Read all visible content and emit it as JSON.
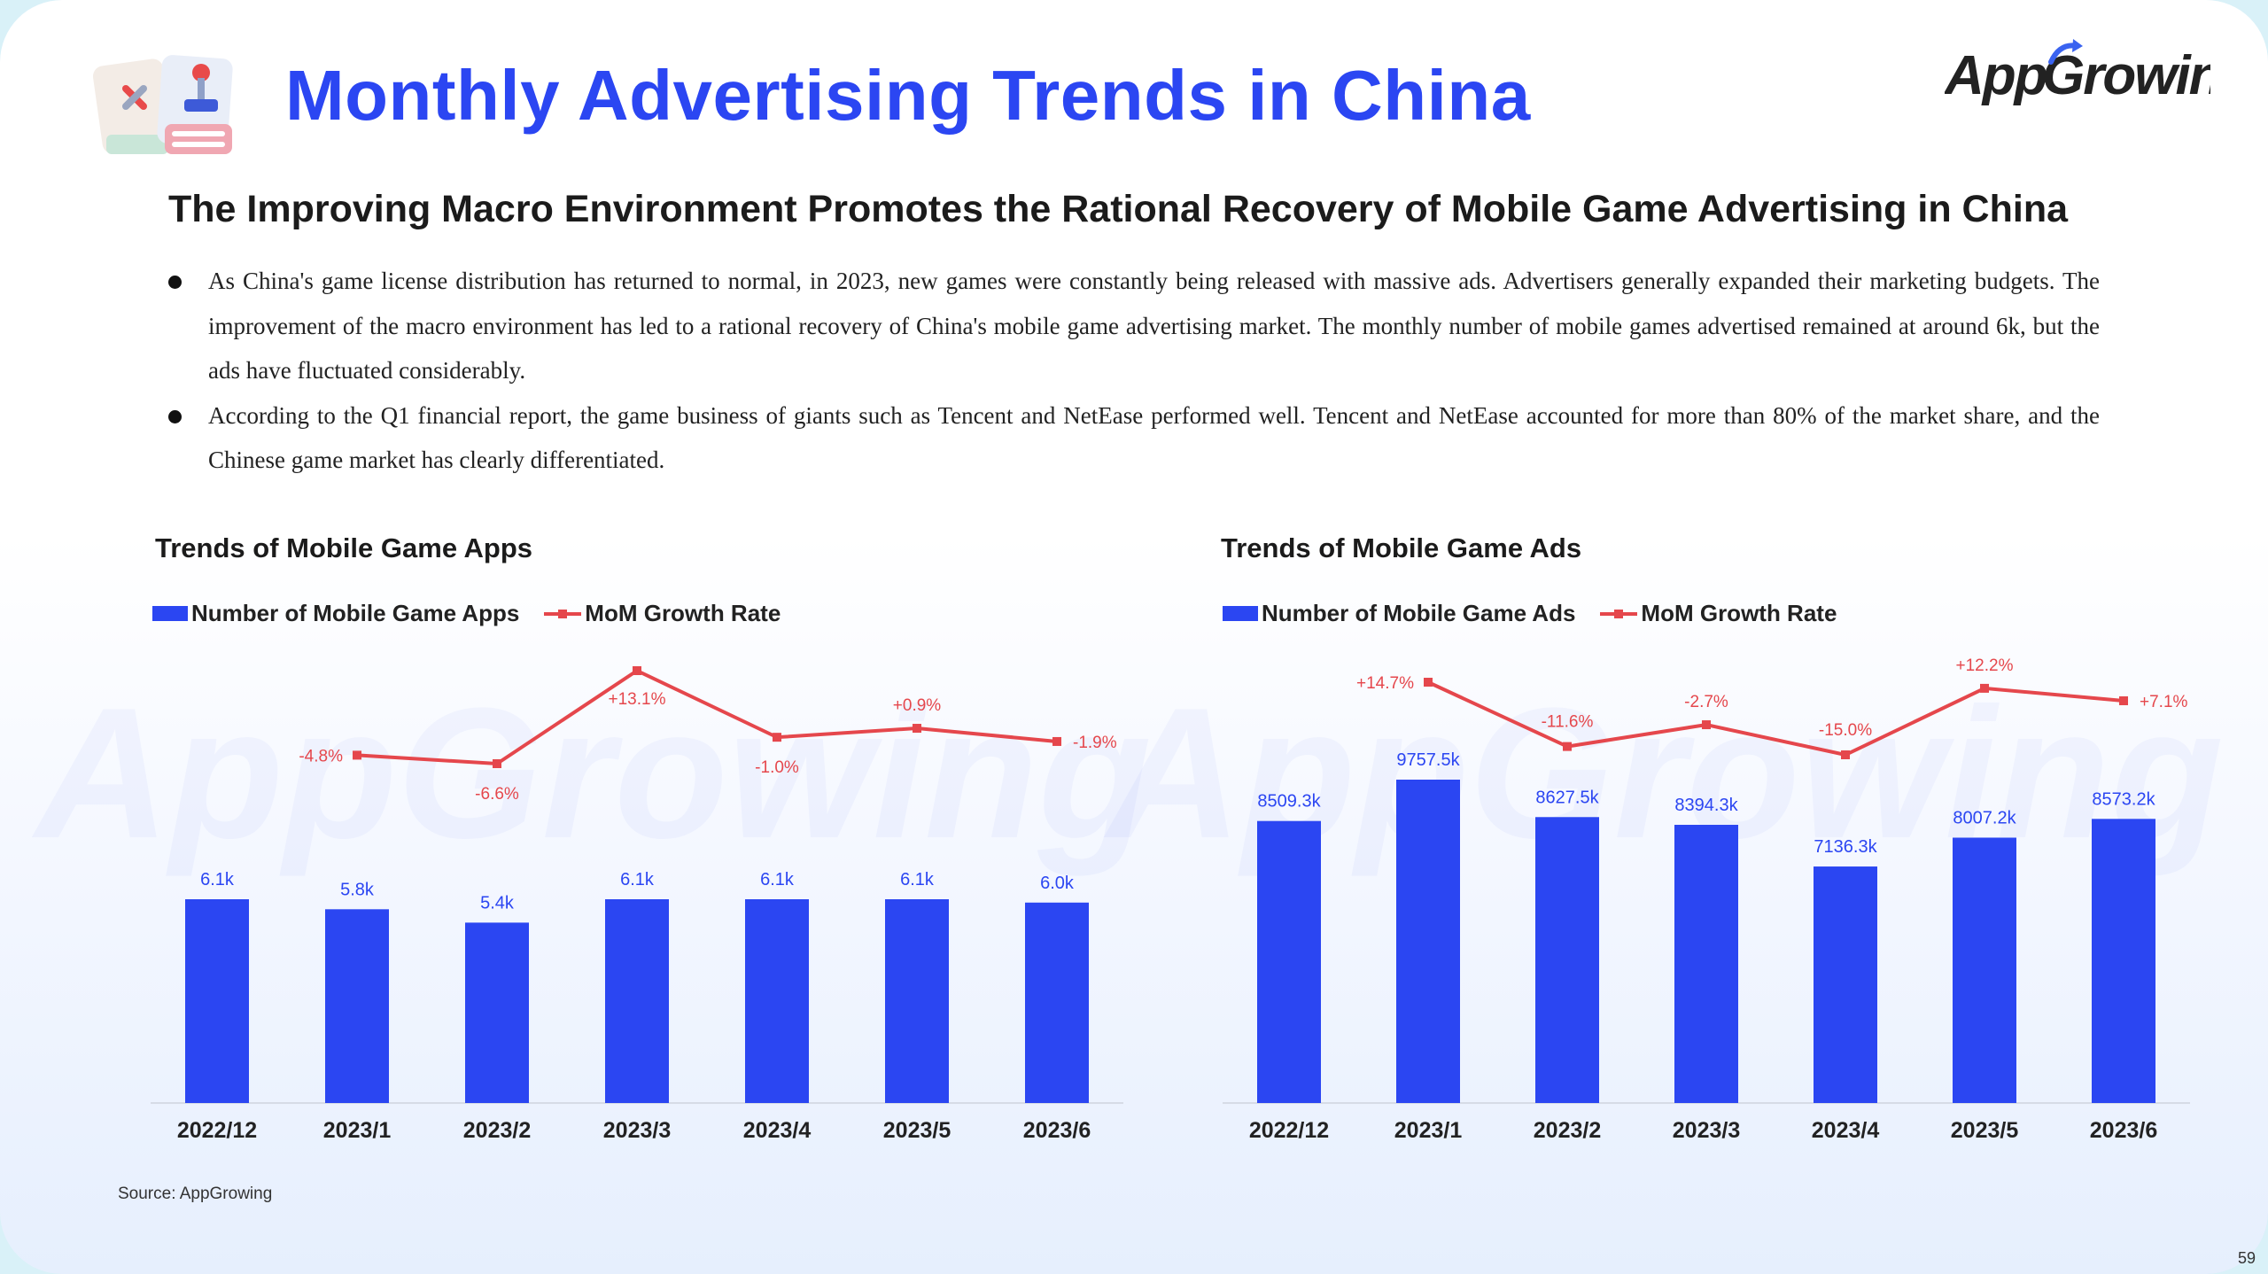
{
  "header": {
    "title": "Monthly Advertising Trends in China",
    "brand": "AppGrowing",
    "subtitle": "The Improving Macro Environment Promotes the Rational Recovery of Mobile Game Advertising in China"
  },
  "bullets": [
    "As China's game license distribution has returned to normal, in 2023, new games were constantly being released with massive ads. Advertisers generally expanded their marketing budgets. The improvement of the macro environment has led to a rational recovery of China's mobile game advertising market. The monthly number of mobile games advertised remained at around 6k, but the ads have fluctuated considerably.",
    "According to the Q1 financial report, the game business of giants such as Tencent and NetEase performed well. Tencent and NetEase accounted for more than 80% of the market share, and the Chinese game market has clearly differentiated."
  ],
  "colors": {
    "bar": "#2b46f2",
    "line": "#e5474c",
    "title": "#2b46f2"
  },
  "chart_data": [
    {
      "type": "bar",
      "title": "Trends of Mobile Game Apps",
      "categories": [
        "2022/12",
        "2023/1",
        "2023/2",
        "2023/3",
        "2023/4",
        "2023/5",
        "2023/6"
      ],
      "series": [
        {
          "name": "Number of Mobile Game Apps",
          "type": "bar",
          "values": [
            6.1,
            5.8,
            5.4,
            6.1,
            6.1,
            6.1,
            6.0
          ],
          "labels": [
            "6.1k",
            "5.8k",
            "5.4k",
            "6.1k",
            "6.1k",
            "6.1k",
            "6.0k"
          ]
        },
        {
          "name": "MoM Growth Rate",
          "type": "line",
          "values": [
            null,
            -4.8,
            -6.6,
            13.1,
            -1.0,
            0.9,
            -1.9
          ],
          "labels": [
            "",
            "-4.8%",
            "-6.6%",
            "+13.1%",
            "-1.0%",
            "+0.9%",
            "-1.9%"
          ]
        }
      ]
    },
    {
      "type": "bar",
      "title": "Trends of Mobile Game Ads",
      "categories": [
        "2022/12",
        "2023/1",
        "2023/2",
        "2023/3",
        "2023/4",
        "2023/5",
        "2023/6"
      ],
      "series": [
        {
          "name": "Number of Mobile Game Ads",
          "type": "bar",
          "values": [
            8509.3,
            9757.5,
            8627.5,
            8394.3,
            7136.3,
            8007.2,
            8573.2
          ],
          "labels": [
            "8509.3k",
            "9757.5k",
            "8627.5k",
            "8394.3k",
            "7136.3k",
            "8007.2k",
            "8573.2k"
          ]
        },
        {
          "name": "MoM Growth Rate",
          "type": "line",
          "values": [
            null,
            14.7,
            -11.6,
            -2.7,
            -15.0,
            12.2,
            7.1
          ],
          "labels": [
            "",
            "+14.7%",
            "-11.6%",
            "-2.7%",
            "-15.0%",
            "+12.2%",
            "+7.1%"
          ]
        }
      ]
    }
  ],
  "footer": {
    "source": "Source: AppGrowing",
    "page": "59"
  }
}
